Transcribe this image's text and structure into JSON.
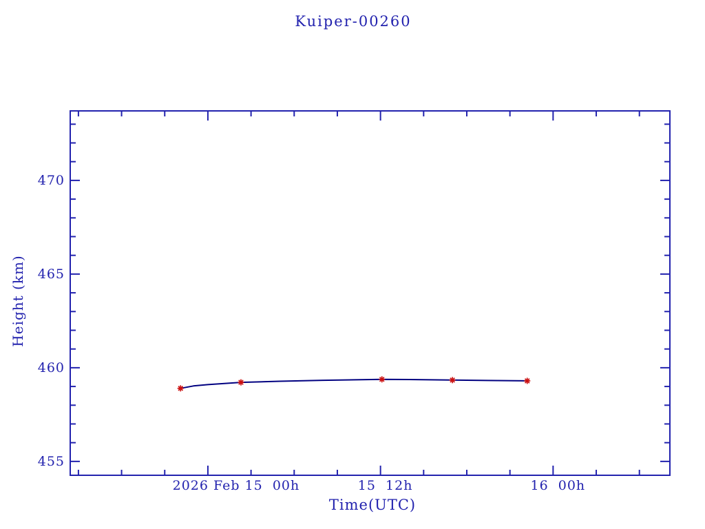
{
  "page": {
    "background": "#ffffff"
  },
  "chart_data": {
    "type": "line",
    "title": "Kuiper-00260",
    "xlabel": "Time(UTC)",
    "ylabel": "Height (km)",
    "x_unit": "hours since 2026 Feb 15 00:00 UTC",
    "xlim": [
      -9.57,
      32.12
    ],
    "ylim": [
      454.26,
      473.71
    ],
    "grid": false,
    "legend": null,
    "x_minor_step_hours": 3,
    "x_major_ticks": [
      0,
      12,
      24
    ],
    "x_tick_labels": [
      {
        "t": 0,
        "text": "2026 Feb 15  00h"
      },
      {
        "t": 12,
        "text": "15  12h"
      },
      {
        "t": 24,
        "text": "16  00h"
      }
    ],
    "y_minor_step": 1,
    "y_major_ticks": [
      455,
      460,
      465,
      470
    ],
    "colors": {
      "axis": "#2222ae",
      "line": "#000080",
      "marker": "#cc1111",
      "background": "#ffffff"
    },
    "series": [
      {
        "name": "height",
        "marker": "asterisk",
        "points": [
          {
            "t": -1.9,
            "utc": "2026 Feb 14 22:05",
            "height_km": 458.9
          },
          {
            "t": 2.3,
            "utc": "2026 Feb 15 02:18",
            "height_km": 459.22
          },
          {
            "t": 12.1,
            "utc": "2026 Feb 15 12:06",
            "height_km": 459.38
          },
          {
            "t": 17.0,
            "utc": "2026 Feb 15 17:00",
            "height_km": 459.34
          },
          {
            "t": 22.2,
            "utc": "2026 Feb 15 22:12",
            "height_km": 459.3
          }
        ],
        "line": [
          [
            -1.9,
            458.9
          ],
          [
            -1.0,
            459.03
          ],
          [
            0.0,
            459.1
          ],
          [
            2.3,
            459.22
          ],
          [
            5.0,
            459.28
          ],
          [
            8.0,
            459.33
          ],
          [
            12.1,
            459.38
          ],
          [
            14.0,
            459.37
          ],
          [
            17.0,
            459.34
          ],
          [
            19.5,
            459.32
          ],
          [
            22.2,
            459.3
          ]
        ]
      }
    ]
  }
}
